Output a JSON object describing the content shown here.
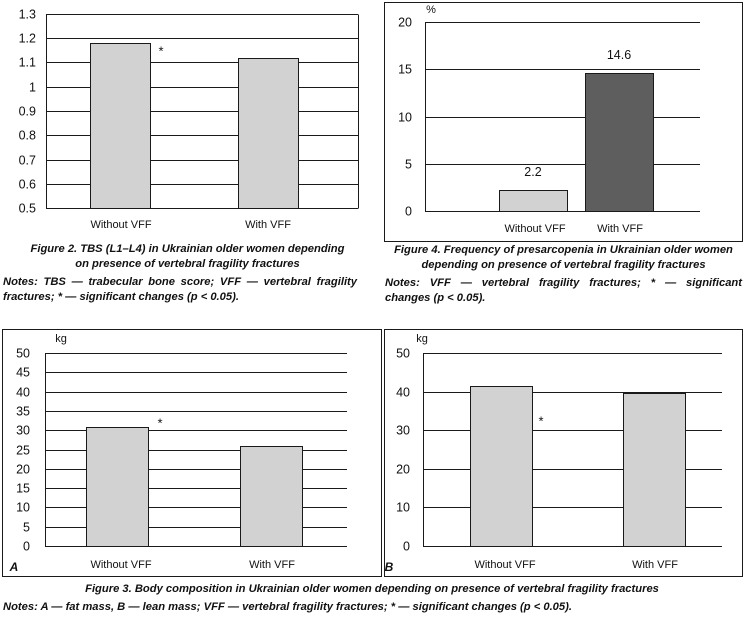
{
  "figures": {
    "fig2": {
      "caption_lines": [
        "Figure 2. TBS (L1–L4) in Ukrainian older women depending",
        "on presence of vertebral fragility fractures"
      ],
      "notes_lines": [
        "Notes: TBS — trabecular bone score; VFF — vertebral fragility",
        "fractures; * — significant changes (p < 0.05)."
      ]
    },
    "fig4": {
      "caption_lines": [
        "Figure 4. Frequency of presarcopenia in Ukrainian older women",
        "depending on presence of vertebral fragility fractures"
      ],
      "notes_lines": [
        "Notes: VFF — vertebral fragility fractures; * — significant",
        "changes (p < 0.05)."
      ]
    },
    "fig3": {
      "caption_lines": [
        "Figure 3. Body composition in Ukrainian older women depending on presence of vertebral fragility fractures"
      ],
      "notes_lines": [
        "Notes: A — fat mass, B — lean mass; VFF — vertebral fragility fractures; * — significant changes (p < 0.05)."
      ]
    }
  },
  "chart_data": [
    {
      "type": "bar",
      "categories": [
        "Without VFF",
        "With VFF"
      ],
      "values": [
        1.18,
        1.12
      ],
      "markers": [
        "*",
        ""
      ],
      "ylim": [
        0.5,
        1.3
      ],
      "yticks": [
        "0.5",
        "0.6",
        "0.7",
        "0.8",
        "0.9",
        "1",
        "1.1",
        "1.2",
        "1.3"
      ],
      "grid": true,
      "bar_colors": [
        "#d2d2d2",
        "#d2d2d2"
      ]
    },
    {
      "type": "bar",
      "categories": [
        "Without VFF",
        "With VFF"
      ],
      "values": [
        2.2,
        14.6
      ],
      "data_labels": [
        "2.2",
        "14.6"
      ],
      "ylabel": "%",
      "ylim": [
        0,
        20
      ],
      "yticks": [
        "0",
        "5",
        "10",
        "15",
        "20"
      ],
      "grid": true,
      "bar_colors": [
        "#d2d2d2",
        "#5e5e5e"
      ]
    },
    {
      "type": "bar",
      "panel_label": "A",
      "categories": [
        "Without VFF",
        "With VFF"
      ],
      "values": [
        30.8,
        25.8
      ],
      "markers": [
        "*",
        ""
      ],
      "ylabel": "kg",
      "ylim": [
        0,
        50
      ],
      "yticks": [
        "0",
        "5",
        "10",
        "15",
        "20",
        "25",
        "30",
        "35",
        "40",
        "45",
        "50"
      ],
      "grid": true,
      "bar_colors": [
        "#d2d2d2",
        "#d2d2d2"
      ]
    },
    {
      "type": "bar",
      "panel_label": "B",
      "categories": [
        "Without VFF",
        "With VFF"
      ],
      "values": [
        41.4,
        39.6
      ],
      "markers": [
        "*",
        ""
      ],
      "ylabel": "kg",
      "ylim": [
        0,
        50
      ],
      "yticks": [
        "0",
        "10",
        "20",
        "30",
        "40",
        "50"
      ],
      "grid": true,
      "bar_colors": [
        "#d2d2d2",
        "#d2d2d2"
      ]
    }
  ]
}
